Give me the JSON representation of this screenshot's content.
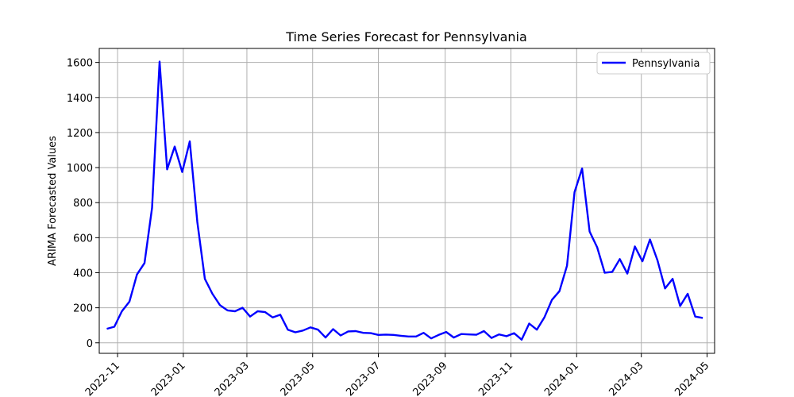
{
  "chart_data": {
    "type": "line",
    "title": "Time Series Forecast for Pennsylvania",
    "xlabel": "",
    "ylabel": "ARIMA Forecasted Values",
    "ylim": [
      -60,
      1680
    ],
    "xlim": [
      "2022-10-15",
      "2024-05-08"
    ],
    "grid": true,
    "legend_position": "top-right",
    "x_ticks": [
      "2022-11",
      "2023-01",
      "2023-03",
      "2023-05",
      "2023-07",
      "2023-09",
      "2023-11",
      "2024-01",
      "2024-03",
      "2024-05"
    ],
    "x_tick_dates": [
      "2022-11-01",
      "2023-01-01",
      "2023-03-01",
      "2023-05-01",
      "2023-07-01",
      "2023-09-01",
      "2023-11-01",
      "2024-01-01",
      "2024-03-01",
      "2024-05-01"
    ],
    "y_ticks": [
      0,
      200,
      400,
      600,
      800,
      1000,
      1200,
      1400,
      1600
    ],
    "series": [
      {
        "name": "Pennsylvania",
        "color": "#0000ff",
        "points": [
          [
            "2022-10-22",
            80
          ],
          [
            "2022-10-29",
            92
          ],
          [
            "2022-11-05",
            180
          ],
          [
            "2022-11-12",
            235
          ],
          [
            "2022-11-19",
            390
          ],
          [
            "2022-11-26",
            455
          ],
          [
            "2022-12-03",
            770
          ],
          [
            "2022-12-10",
            1605
          ],
          [
            "2022-12-17",
            990
          ],
          [
            "2022-12-24",
            1120
          ],
          [
            "2022-12-31",
            975
          ],
          [
            "2023-01-07",
            1150
          ],
          [
            "2023-01-14",
            690
          ],
          [
            "2023-01-21",
            365
          ],
          [
            "2023-01-28",
            280
          ],
          [
            "2023-02-04",
            215
          ],
          [
            "2023-02-11",
            185
          ],
          [
            "2023-02-18",
            180
          ],
          [
            "2023-02-25",
            200
          ],
          [
            "2023-03-04",
            150
          ],
          [
            "2023-03-11",
            180
          ],
          [
            "2023-03-18",
            175
          ],
          [
            "2023-03-25",
            145
          ],
          [
            "2023-04-01",
            160
          ],
          [
            "2023-04-08",
            75
          ],
          [
            "2023-04-15",
            60
          ],
          [
            "2023-04-22",
            70
          ],
          [
            "2023-04-29",
            88
          ],
          [
            "2023-05-06",
            75
          ],
          [
            "2023-05-13",
            30
          ],
          [
            "2023-05-20",
            78
          ],
          [
            "2023-05-27",
            42
          ],
          [
            "2023-06-03",
            65
          ],
          [
            "2023-06-10",
            67
          ],
          [
            "2023-06-17",
            57
          ],
          [
            "2023-06-24",
            55
          ],
          [
            "2023-07-01",
            45
          ],
          [
            "2023-07-08",
            47
          ],
          [
            "2023-07-15",
            45
          ],
          [
            "2023-07-22",
            40
          ],
          [
            "2023-07-29",
            36
          ],
          [
            "2023-08-05",
            36
          ],
          [
            "2023-08-12",
            57
          ],
          [
            "2023-08-19",
            25
          ],
          [
            "2023-08-26",
            45
          ],
          [
            "2023-09-02",
            62
          ],
          [
            "2023-09-09",
            30
          ],
          [
            "2023-09-16",
            50
          ],
          [
            "2023-09-23",
            48
          ],
          [
            "2023-09-30",
            46
          ],
          [
            "2023-10-07",
            67
          ],
          [
            "2023-10-14",
            28
          ],
          [
            "2023-10-21",
            48
          ],
          [
            "2023-10-28",
            38
          ],
          [
            "2023-11-04",
            55
          ],
          [
            "2023-11-11",
            18
          ],
          [
            "2023-11-18",
            110
          ],
          [
            "2023-11-25",
            75
          ],
          [
            "2023-12-02",
            145
          ],
          [
            "2023-12-09",
            245
          ],
          [
            "2023-12-16",
            295
          ],
          [
            "2023-12-23",
            440
          ],
          [
            "2023-12-30",
            860
          ],
          [
            "2024-01-06",
            995
          ],
          [
            "2024-01-13",
            635
          ],
          [
            "2024-01-20",
            545
          ],
          [
            "2024-01-27",
            400
          ],
          [
            "2024-02-03",
            405
          ],
          [
            "2024-02-10",
            478
          ],
          [
            "2024-02-17",
            395
          ],
          [
            "2024-02-24",
            550
          ],
          [
            "2024-03-02",
            465
          ],
          [
            "2024-03-09",
            590
          ],
          [
            "2024-03-16",
            470
          ],
          [
            "2024-03-23",
            310
          ],
          [
            "2024-03-30",
            365
          ],
          [
            "2024-04-06",
            210
          ],
          [
            "2024-04-13",
            280
          ],
          [
            "2024-04-20",
            150
          ],
          [
            "2024-04-27",
            142
          ]
        ]
      }
    ]
  }
}
